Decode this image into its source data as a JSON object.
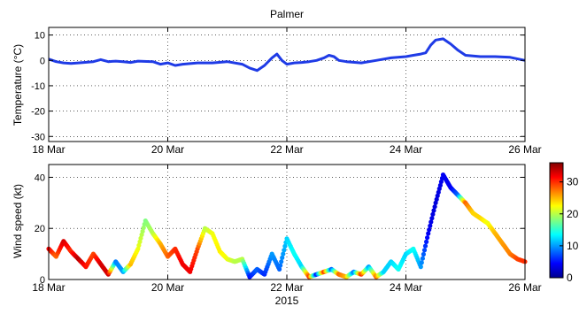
{
  "chart_data": [
    {
      "type": "line",
      "title": "Palmer",
      "ylabel": "Temperature (°C)",
      "xlim": [
        "2015-03-18",
        "2015-03-26"
      ],
      "ylim": [
        -32,
        13
      ],
      "yticks": [
        10,
        0,
        -10,
        -20,
        -30
      ],
      "xticks": [
        {
          "date": "2015-03-18",
          "label": "18 Mar"
        },
        {
          "date": "2015-03-20",
          "label": "20 Mar"
        },
        {
          "date": "2015-03-22",
          "label": "22 Mar"
        },
        {
          "date": "2015-03-24",
          "label": "24 Mar"
        },
        {
          "date": "2015-03-26",
          "label": "26 Mar"
        }
      ],
      "grid": true,
      "color": "#1f3be6",
      "series": [
        {
          "points": [
            [
              "2015-03-18 00:00",
              0.5
            ],
            [
              "2015-03-18 03:00",
              -0.5
            ],
            [
              "2015-03-18 06:00",
              -1.0
            ],
            [
              "2015-03-18 09:00",
              -1.2
            ],
            [
              "2015-03-18 12:00",
              -1.0
            ],
            [
              "2015-03-18 18:00",
              -0.5
            ],
            [
              "2015-03-18 21:00",
              0.3
            ],
            [
              "2015-03-19 00:00",
              -0.5
            ],
            [
              "2015-03-19 03:00",
              -0.3
            ],
            [
              "2015-03-19 06:00",
              -0.5
            ],
            [
              "2015-03-19 09:00",
              -0.8
            ],
            [
              "2015-03-19 12:00",
              -0.3
            ],
            [
              "2015-03-19 18:00",
              -0.5
            ],
            [
              "2015-03-19 21:00",
              -1.5
            ],
            [
              "2015-03-20 00:00",
              -1.0
            ],
            [
              "2015-03-20 03:00",
              -2.0
            ],
            [
              "2015-03-20 06:00",
              -1.5
            ],
            [
              "2015-03-20 12:00",
              -1.0
            ],
            [
              "2015-03-20 18:00",
              -1.0
            ],
            [
              "2015-03-21 00:00",
              -0.5
            ],
            [
              "2015-03-21 06:00",
              -1.5
            ],
            [
              "2015-03-21 09:00",
              -3.0
            ],
            [
              "2015-03-21 12:00",
              -4.0
            ],
            [
              "2015-03-21 15:00",
              -2.0
            ],
            [
              "2015-03-21 18:00",
              1.0
            ],
            [
              "2015-03-21 20:00",
              2.5
            ],
            [
              "2015-03-21 22:00",
              0.0
            ],
            [
              "2015-03-22 00:00",
              -1.5
            ],
            [
              "2015-03-22 03:00",
              -1.0
            ],
            [
              "2015-03-22 06:00",
              -0.8
            ],
            [
              "2015-03-22 09:00",
              -0.5
            ],
            [
              "2015-03-22 12:00",
              0.0
            ],
            [
              "2015-03-22 15:00",
              1.0
            ],
            [
              "2015-03-22 17:00",
              2.0
            ],
            [
              "2015-03-22 19:00",
              1.5
            ],
            [
              "2015-03-22 21:00",
              0.0
            ],
            [
              "2015-03-23 00:00",
              -0.5
            ],
            [
              "2015-03-23 06:00",
              -1.0
            ],
            [
              "2015-03-23 12:00",
              0.0
            ],
            [
              "2015-03-23 18:00",
              1.0
            ],
            [
              "2015-03-24 00:00",
              1.5
            ],
            [
              "2015-03-24 03:00",
              2.0
            ],
            [
              "2015-03-24 06:00",
              2.5
            ],
            [
              "2015-03-24 08:00",
              3.0
            ],
            [
              "2015-03-24 10:00",
              6.0
            ],
            [
              "2015-03-24 12:00",
              8.0
            ],
            [
              "2015-03-24 15:00",
              8.5
            ],
            [
              "2015-03-24 18:00",
              6.5
            ],
            [
              "2015-03-24 21:00",
              4.0
            ],
            [
              "2015-03-25 00:00",
              2.0
            ],
            [
              "2015-03-25 06:00",
              1.5
            ],
            [
              "2015-03-25 12:00",
              1.5
            ],
            [
              "2015-03-25 18:00",
              1.2
            ],
            [
              "2015-03-26 00:00",
              0.0
            ]
          ]
        }
      ]
    },
    {
      "type": "scatter",
      "ylabel": "Wind speed (kt)",
      "xlabel": "2015",
      "xlim": [
        "2015-03-18",
        "2015-03-26"
      ],
      "ylim": [
        0,
        45
      ],
      "yticks": [
        0,
        20,
        40
      ],
      "xticks": [
        {
          "date": "2015-03-18",
          "label": "18 Mar"
        },
        {
          "date": "2015-03-20",
          "label": "20 Mar"
        },
        {
          "date": "2015-03-22",
          "label": "22 Mar"
        },
        {
          "date": "2015-03-24",
          "label": "24 Mar"
        },
        {
          "date": "2015-03-26",
          "label": "26 Mar"
        }
      ],
      "grid": true,
      "colorbar": {
        "min": 0,
        "max": 36,
        "ticks": [
          "0",
          "10",
          "20",
          "30"
        ]
      },
      "colormap": [
        "#00008f",
        "#0000ff",
        "#0080ff",
        "#00ffff",
        "#80ff80",
        "#ffff00",
        "#ff8000",
        "#ff0000",
        "#800000"
      ],
      "series": [
        {
          "points": [
            [
              "2015-03-18 00:00",
              12,
              32
            ],
            [
              "2015-03-18 03:00",
              9,
              28
            ],
            [
              "2015-03-18 06:00",
              15,
              33
            ],
            [
              "2015-03-18 09:00",
              11,
              30
            ],
            [
              "2015-03-18 12:00",
              8,
              34
            ],
            [
              "2015-03-18 15:00",
              5,
              31
            ],
            [
              "2015-03-18 18:00",
              10,
              29
            ],
            [
              "2015-03-18 21:00",
              6,
              33
            ],
            [
              "2015-03-19 00:00",
              2,
              33
            ],
            [
              "2015-03-19 03:00",
              7,
              9
            ],
            [
              "2015-03-19 06:00",
              3,
              10
            ],
            [
              "2015-03-19 09:00",
              6,
              25
            ],
            [
              "2015-03-19 12:00",
              12,
              22
            ],
            [
              "2015-03-19 15:00",
              23,
              18
            ],
            [
              "2015-03-19 18:00",
              18,
              20
            ],
            [
              "2015-03-19 21:00",
              14,
              25
            ],
            [
              "2015-03-20 00:00",
              9,
              28
            ],
            [
              "2015-03-20 03:00",
              12,
              30
            ],
            [
              "2015-03-20 06:00",
              6,
              32
            ],
            [
              "2015-03-20 09:00",
              3,
              32
            ],
            [
              "2015-03-20 12:00",
              12,
              29
            ],
            [
              "2015-03-20 15:00",
              20,
              20
            ],
            [
              "2015-03-20 18:00",
              18,
              22
            ],
            [
              "2015-03-20 21:00",
              11,
              23
            ],
            [
              "2015-03-21 00:00",
              8,
              22
            ],
            [
              "2015-03-21 03:00",
              7,
              20
            ],
            [
              "2015-03-21 06:00",
              8,
              20
            ],
            [
              "2015-03-21 09:00",
              1,
              5
            ],
            [
              "2015-03-21 12:00",
              4,
              8
            ],
            [
              "2015-03-21 15:00",
              2,
              6
            ],
            [
              "2015-03-21 18:00",
              10,
              10
            ],
            [
              "2015-03-21 21:00",
              4,
              8
            ],
            [
              "2015-03-22 00:00",
              16,
              12
            ],
            [
              "2015-03-22 03:00",
              10,
              14
            ],
            [
              "2015-03-22 06:00",
              5,
              12
            ],
            [
              "2015-03-22 09:00",
              1,
              30
            ],
            [
              "2015-03-22 12:00",
              2,
              5
            ],
            [
              "2015-03-22 15:00",
              3,
              30
            ],
            [
              "2015-03-22 18:00",
              4,
              8
            ],
            [
              "2015-03-22 21:00",
              2,
              28
            ],
            [
              "2015-03-23 00:00",
              1,
              25
            ],
            [
              "2015-03-23 03:00",
              3,
              8
            ],
            [
              "2015-03-23 06:00",
              2,
              30
            ],
            [
              "2015-03-23 09:00",
              5,
              10
            ],
            [
              "2015-03-23 12:00",
              1,
              28
            ],
            [
              "2015-03-23 15:00",
              3,
              12
            ],
            [
              "2015-03-23 18:00",
              7,
              12
            ],
            [
              "2015-03-23 21:00",
              4,
              14
            ],
            [
              "2015-03-24 00:00",
              10,
              12
            ],
            [
              "2015-03-24 03:00",
              12,
              14
            ],
            [
              "2015-03-24 06:00",
              5,
              10
            ],
            [
              "2015-03-24 09:00",
              18,
              4
            ],
            [
              "2015-03-24 12:00",
              30,
              3
            ],
            [
              "2015-03-24 15:00",
              41,
              4
            ],
            [
              "2015-03-24 18:00",
              36,
              4
            ],
            [
              "2015-03-24 21:00",
              33,
              8
            ],
            [
              "2015-03-25 00:00",
              30,
              28
            ],
            [
              "2015-03-25 03:00",
              26,
              24
            ],
            [
              "2015-03-25 06:00",
              24,
              24
            ],
            [
              "2015-03-25 09:00",
              22,
              22
            ],
            [
              "2015-03-25 12:00",
              18,
              25
            ],
            [
              "2015-03-25 15:00",
              14,
              26
            ],
            [
              "2015-03-25 18:00",
              10,
              27
            ],
            [
              "2015-03-25 21:00",
              8,
              29
            ],
            [
              "2015-03-26 00:00",
              7,
              30
            ]
          ]
        }
      ]
    }
  ]
}
